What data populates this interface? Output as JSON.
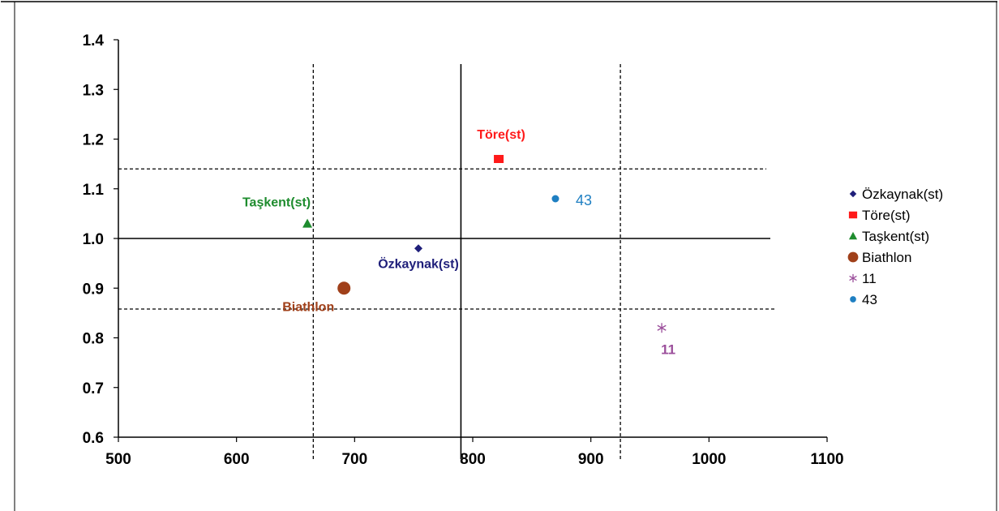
{
  "chart_data": {
    "type": "scatter",
    "title": "",
    "xlabel": "",
    "ylabel": "",
    "xlim": [
      500,
      1100
    ],
    "ylim": [
      0.6,
      1.4
    ],
    "x_ticks": [
      500,
      600,
      700,
      800,
      900,
      1000,
      1100
    ],
    "y_ticks": [
      "0.6",
      "0.7",
      "0.8",
      "0.9",
      "1.0",
      "1.1",
      "1.2",
      "1.3",
      "1.4"
    ],
    "grid": false,
    "legend_position": "right",
    "series": [
      {
        "name": "Özkaynak(st)",
        "marker": "diamond",
        "color": "#1F1F7A",
        "label_color": "#1F1F7A",
        "x": 754,
        "y": 0.98,
        "label": "Özkaynak(st)"
      },
      {
        "name": "Töre(st)",
        "marker": "square",
        "color": "#FF1A1A",
        "label_color": "#FF1A1A",
        "x": 822,
        "y": 1.16,
        "label": "Töre(st)"
      },
      {
        "name": "Taşkent(st)",
        "marker": "triangle",
        "color": "#1E8C2E",
        "label_color": "#1E8C2E",
        "x": 660,
        "y": 1.03,
        "label": "Taşkent(st)"
      },
      {
        "name": "Biathlon",
        "marker": "circle-large",
        "color": "#A0401A",
        "label_color": "#A0401A",
        "x": 691,
        "y": 0.9,
        "label": "Biathlon"
      },
      {
        "name": "11",
        "marker": "asterisk",
        "color": "#9B4F9B",
        "label_color": "#9B4F9B",
        "x": 960,
        "y": 0.82,
        "label": "11"
      },
      {
        "name": "43",
        "marker": "circle",
        "color": "#1E7FC2",
        "label_color": "#1E7FC2",
        "x": 870,
        "y": 1.08,
        "label": "43"
      }
    ],
    "reference_lines": [
      {
        "orientation": "vertical",
        "value": 790,
        "style": "solid"
      },
      {
        "orientation": "vertical",
        "value": 665,
        "style": "dashed"
      },
      {
        "orientation": "vertical",
        "value": 925,
        "style": "dashed"
      },
      {
        "orientation": "horizontal",
        "value": 1.0,
        "style": "solid"
      },
      {
        "orientation": "horizontal",
        "value": 1.14,
        "style": "dashed"
      },
      {
        "orientation": "horizontal",
        "value": 0.858,
        "style": "dashed"
      }
    ]
  }
}
